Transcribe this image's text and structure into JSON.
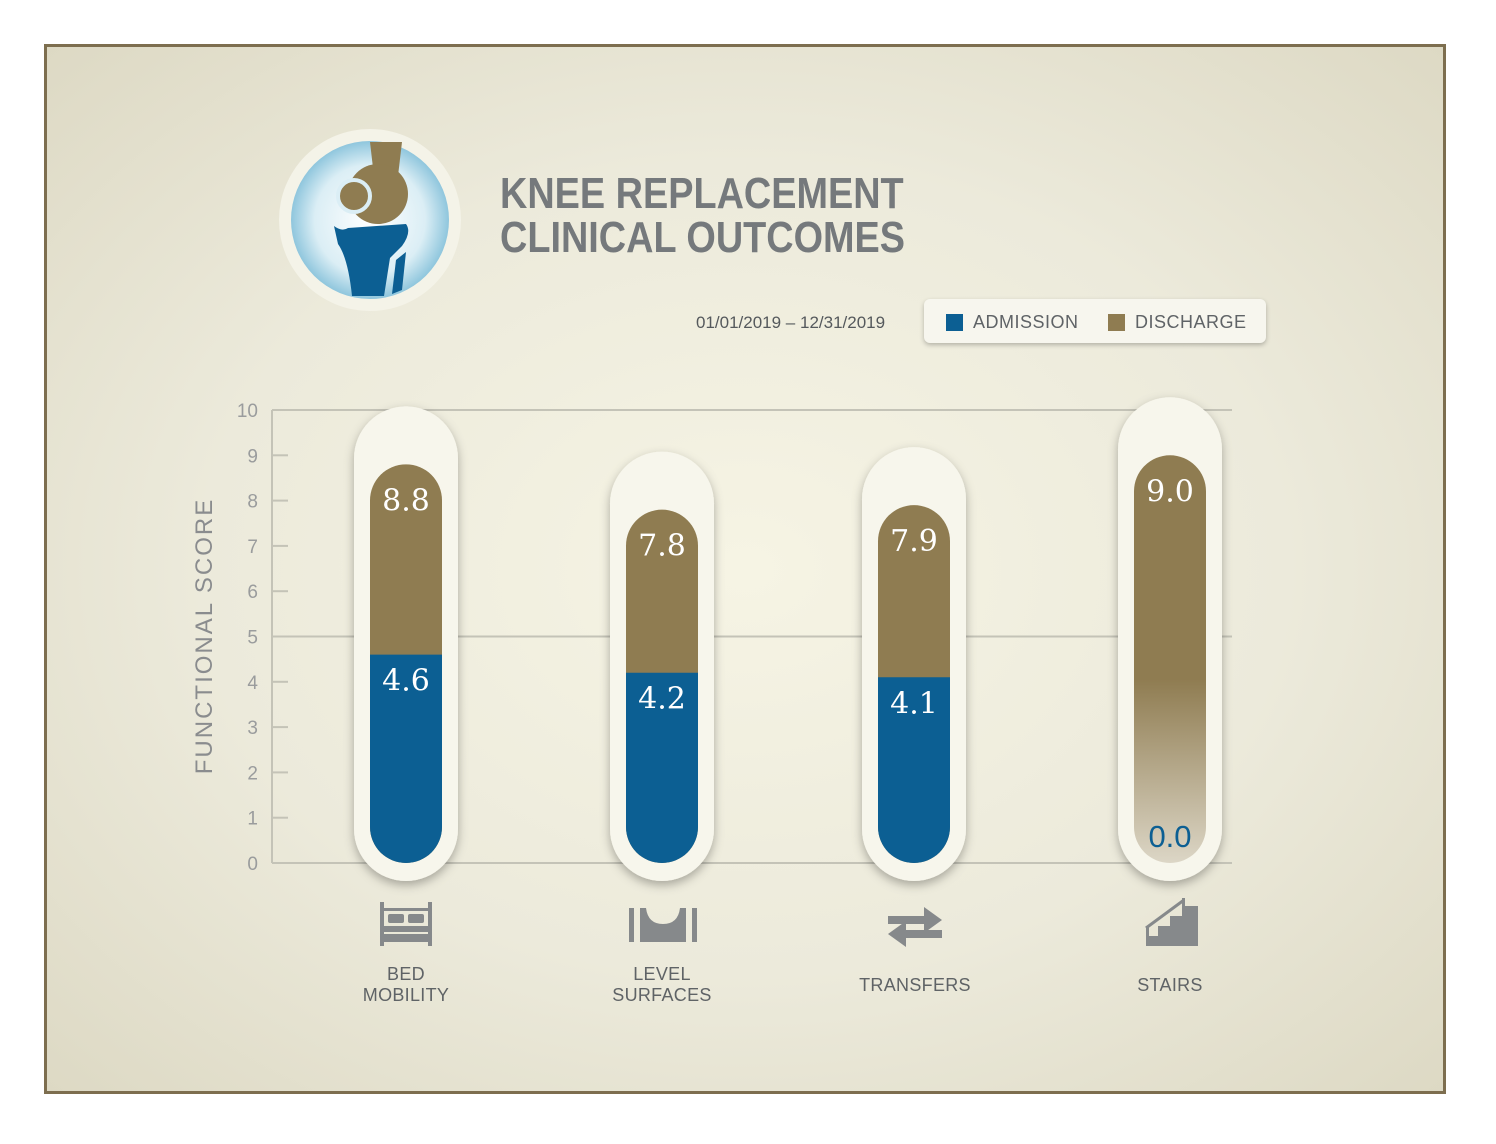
{
  "title_line1": "KNEE REPLACEMENT",
  "title_line2": "CLINICAL OUTCOMES",
  "date_range": "01/01/2019 – 12/31/2019",
  "legend": [
    {
      "label": "ADMISSION",
      "color": "#0c5f93"
    },
    {
      "label": "DISCHARGE",
      "color": "#8f7c51"
    }
  ],
  "icons": [
    "bed-icon",
    "level-surface-icon",
    "transfer-arrows-icon",
    "stairs-icon"
  ],
  "chart_data": {
    "type": "bar",
    "ylabel": "FUNCTIONAL SCORE",
    "ylim": [
      0,
      10
    ],
    "yticks": [
      0,
      1,
      2,
      3,
      4,
      5,
      6,
      7,
      8,
      9,
      10
    ],
    "grid": true,
    "legend_position": "top-right",
    "categories": [
      {
        "line1": "BED",
        "line2": "MOBILITY"
      },
      {
        "line1": "LEVEL",
        "line2": "SURFACES"
      },
      {
        "line1": "TRANSFERS",
        "line2": ""
      },
      {
        "line1": "STAIRS",
        "line2": ""
      }
    ],
    "series": [
      {
        "name": "ADMISSION",
        "values": [
          4.6,
          4.2,
          4.1,
          0.0
        ],
        "labels": [
          "4.6",
          "4.2",
          "4.1",
          "0.0"
        ]
      },
      {
        "name": "DISCHARGE",
        "values": [
          8.8,
          7.8,
          7.9,
          9.0
        ],
        "labels": [
          "8.8",
          "7.8",
          "7.9",
          "9.0"
        ]
      }
    ]
  }
}
